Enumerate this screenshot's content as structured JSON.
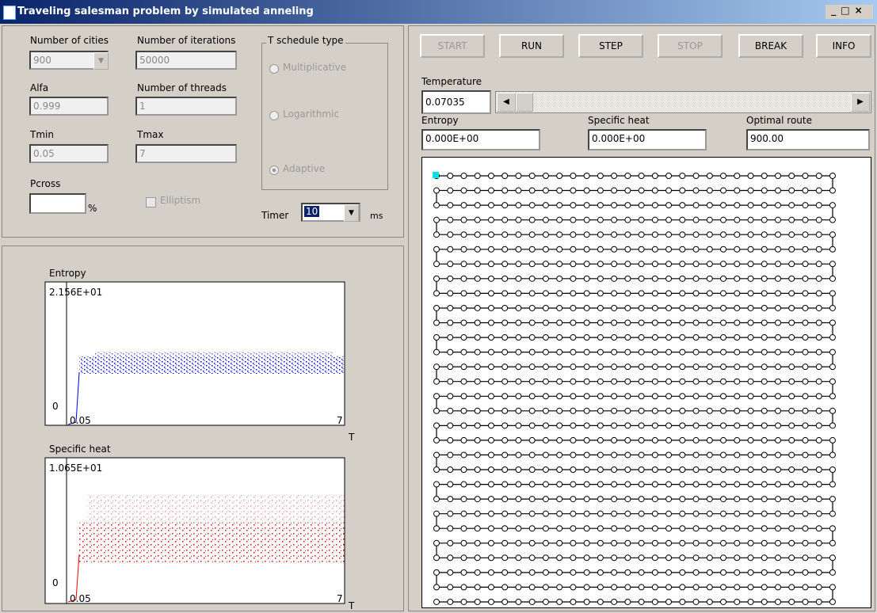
{
  "window": {
    "title": "Traveling salesman problem by simulated anneling"
  },
  "settings": {
    "cities": {
      "label": "Number of cities",
      "value": "900"
    },
    "alfa": {
      "label": "Alfa",
      "value": "0.999"
    },
    "tmin": {
      "label": "Tmin",
      "value": "0.05"
    },
    "pcross": {
      "label": "Pcross",
      "unit": "%"
    },
    "iterations": {
      "label": "Number of iterations",
      "value": "50000"
    },
    "threads": {
      "label": "Number of threads",
      "value": "1"
    },
    "tmax": {
      "label": "Tmax",
      "value": "7"
    },
    "elliptism": "Elliptism",
    "schedule": {
      "label": "T schedule type",
      "options": [
        "Multiplicative",
        "Logarithmic",
        "Adaptive"
      ]
    },
    "timer": {
      "label": "Timer",
      "value": "10",
      "unit": "ms"
    }
  },
  "buttons": [
    "START",
    "RUN",
    "STEP",
    "STOP",
    "BREAK",
    "INFO"
  ],
  "readouts": {
    "temperature": {
      "label": "Temperature",
      "value": "0.07035"
    },
    "entropy": {
      "label": "Entropy",
      "value": "0.000E+00"
    },
    "specific_heat": {
      "label": "Specific heat",
      "value": "0.000E+00"
    },
    "optimal_route": {
      "label": "Optimal route",
      "value": "900.00"
    }
  },
  "plots": [
    {
      "title": "Entropy",
      "y_max": "2.156E+01",
      "y_min": "0",
      "x_min": "0.05",
      "x_max": "7",
      "x_label": "T"
    },
    {
      "title": "Specific heat",
      "y_max": "1.065E+01",
      "y_min": "0",
      "x_min": "0.05",
      "x_max": "7",
      "x_label": "T"
    }
  ]
}
